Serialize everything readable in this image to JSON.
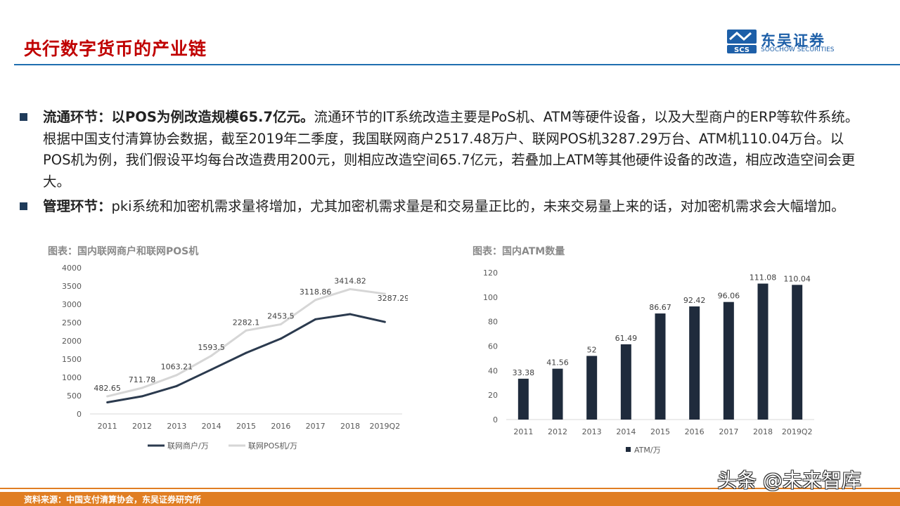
{
  "header": {
    "title": "央行数字货币的产业链",
    "logo_cn": "东吴证券",
    "logo_en": "SOOCHOW SECURITIES",
    "logo_mark": "SCS"
  },
  "bullets": [
    {
      "bold": "流通环节：以POS为例改造规模65.7亿元。",
      "text": "流通环节的IT系统改造主要是PoS机、ATM等硬件设备，以及大型商户的ERP等软件系统。根据中国支付清算协会数据，截至2019年二季度，我国联网商户2517.48万户、联网POS机3287.29万台、ATM机110.04万台。以POS机为例，我们假设平均每台改造费用200元，则相应改造空间65.7亿元，若叠加上ATM等其他硬件设备的改造，相应改造空间会更大。"
    },
    {
      "bold": "管理环节：",
      "text": "pki系统和加密机需求量将增加，尤其加密机需求量是和交易量正比的，未来交易量上来的话，对加密机需求会大幅增加。"
    }
  ],
  "chart_data": [
    {
      "type": "line",
      "title": "图表：国内联网商户和联网POS机",
      "categories": [
        "2011",
        "2012",
        "2013",
        "2014",
        "2015",
        "2016",
        "2017",
        "2018",
        "2019Q2"
      ],
      "ylim": [
        0,
        4000
      ],
      "yticks": [
        "0",
        "500",
        "1000",
        "1500",
        "2000",
        "2500",
        "3000",
        "3500",
        "4000"
      ],
      "grid": false,
      "legend": "bottom",
      "series": [
        {
          "name": "联网商户/万",
          "color": "#2b3a4e",
          "values": [
            318,
            483,
            764,
            1215,
            1670,
            2060,
            2590,
            2730,
            2517.48
          ],
          "labels": []
        },
        {
          "name": "联网POS机/万",
          "color": "#d6d6d6",
          "values": [
            482.65,
            711.78,
            1063.21,
            1593.5,
            2282.1,
            2453.5,
            3118.86,
            3414.82,
            3287.29
          ],
          "labels": [
            "482.65",
            "711.78",
            "1063.21",
            "1593.5",
            "2282.1",
            "2453.5",
            "3118.86",
            "3414.82",
            "3287.29"
          ]
        }
      ]
    },
    {
      "type": "bar",
      "title": "图表：国内ATM数量",
      "categories": [
        "2011",
        "2012",
        "2013",
        "2014",
        "2015",
        "2016",
        "2017",
        "2018",
        "2019Q2"
      ],
      "ylim": [
        0,
        120
      ],
      "yticks": [
        "0",
        "20",
        "40",
        "60",
        "80",
        "100",
        "120"
      ],
      "grid": false,
      "legend": "bottom",
      "series": [
        {
          "name": "ATM/万",
          "color": "#1f2b3c",
          "values": [
            33.38,
            41.56,
            52,
            61.49,
            86.67,
            92.42,
            96.06,
            111.08,
            110.04
          ],
          "labels": [
            "33.38",
            "41.56",
            "52",
            "61.49",
            "86.67",
            "92.42",
            "96.06",
            "111.08",
            "110.04"
          ]
        }
      ]
    }
  ],
  "footer": {
    "source": "资料来源：中国支付清算协会，东吴证券研究所",
    "watermark": "头条 @未来智库"
  }
}
